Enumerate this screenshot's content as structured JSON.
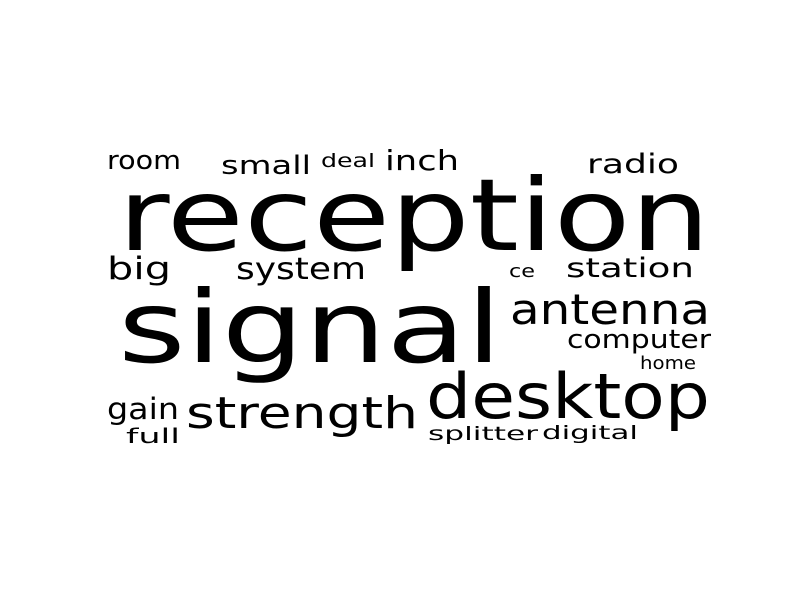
{
  "word_cloud": {
    "text_color": "#000000",
    "background_color": "#ffffff",
    "words": [
      {
        "text": "reception"
      },
      {
        "text": "signal"
      },
      {
        "text": "desktop"
      },
      {
        "text": "antenna"
      },
      {
        "text": "strength"
      },
      {
        "text": "system"
      },
      {
        "text": "station"
      },
      {
        "text": "computer"
      },
      {
        "text": "room"
      },
      {
        "text": "small"
      },
      {
        "text": "inch"
      },
      {
        "text": "radio"
      },
      {
        "text": "big"
      },
      {
        "text": "gain"
      },
      {
        "text": "deal"
      },
      {
        "text": "full"
      },
      {
        "text": "home"
      },
      {
        "text": "ce"
      },
      {
        "text": "splitter"
      },
      {
        "text": "digital"
      }
    ]
  }
}
